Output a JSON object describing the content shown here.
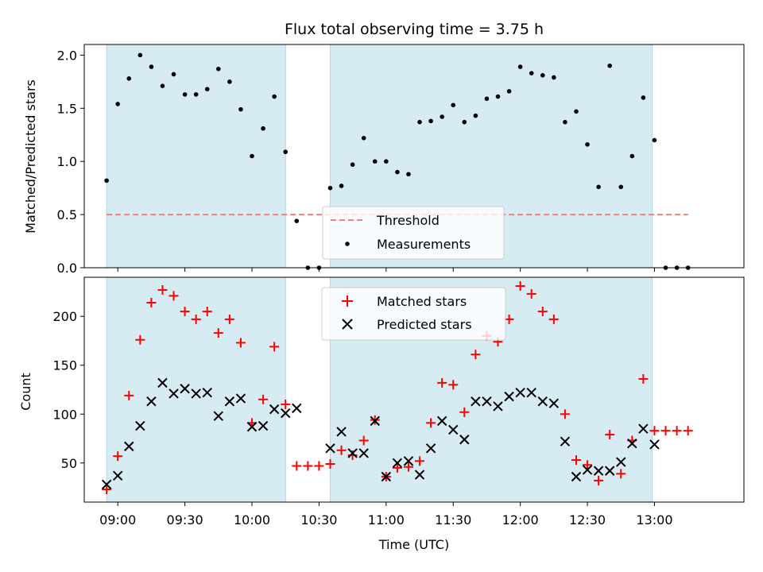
{
  "chart_data": [
    {
      "type": "scatter",
      "title": "Flux total observing time = 3.75 h",
      "xlabel": "",
      "ylabel": "Matched/Predicted stars",
      "ylim": [
        0,
        2.1
      ],
      "xlim": [
        "08:45",
        "13:40"
      ],
      "yticks": [
        "0.0",
        "0.5",
        "1.0",
        "1.5",
        "2.0"
      ],
      "shaded_intervals": [
        [
          "08:55",
          "10:15"
        ],
        [
          "10:35",
          "12:59"
        ]
      ],
      "shade_color": "#add8e6",
      "threshold": {
        "name": "Threshold",
        "value": 0.5,
        "x_range": [
          "08:55",
          "13:15"
        ],
        "color": "#f08080"
      },
      "series": [
        {
          "name": "Measurements",
          "color": "#000000",
          "marker": "dot",
          "points": [
            [
              "08:55",
              0.82
            ],
            [
              "09:00",
              1.54
            ],
            [
              "09:05",
              1.78
            ],
            [
              "09:10",
              2.0
            ],
            [
              "09:15",
              1.89
            ],
            [
              "09:20",
              1.71
            ],
            [
              "09:25",
              1.82
            ],
            [
              "09:30",
              1.63
            ],
            [
              "09:35",
              1.63
            ],
            [
              "09:40",
              1.68
            ],
            [
              "09:45",
              1.87
            ],
            [
              "09:50",
              1.75
            ],
            [
              "09:55",
              1.49
            ],
            [
              "10:00",
              1.05
            ],
            [
              "10:05",
              1.31
            ],
            [
              "10:10",
              1.61
            ],
            [
              "10:15",
              1.09
            ],
            [
              "10:20",
              0.44
            ],
            [
              "10:25",
              0.0
            ],
            [
              "10:30",
              0.0
            ],
            [
              "10:35",
              0.75
            ],
            [
              "10:40",
              0.77
            ],
            [
              "10:45",
              0.97
            ],
            [
              "10:50",
              1.22
            ],
            [
              "10:55",
              1.0
            ],
            [
              "11:00",
              1.0
            ],
            [
              "11:05",
              0.9
            ],
            [
              "11:10",
              0.88
            ],
            [
              "11:15",
              1.37
            ],
            [
              "11:20",
              1.38
            ],
            [
              "11:25",
              1.42
            ],
            [
              "11:30",
              1.53
            ],
            [
              "11:35",
              1.37
            ],
            [
              "11:40",
              1.43
            ],
            [
              "11:45",
              1.59
            ],
            [
              "11:50",
              1.61
            ],
            [
              "11:55",
              1.66
            ],
            [
              "12:00",
              1.89
            ],
            [
              "12:05",
              1.83
            ],
            [
              "12:10",
              1.81
            ],
            [
              "12:15",
              1.79
            ],
            [
              "12:20",
              1.37
            ],
            [
              "12:25",
              1.47
            ],
            [
              "12:30",
              1.16
            ],
            [
              "12:35",
              0.76
            ],
            [
              "12:40",
              1.9
            ],
            [
              "12:45",
              0.76
            ],
            [
              "12:50",
              1.05
            ],
            [
              "12:55",
              1.6
            ],
            [
              "13:00",
              1.2
            ],
            [
              "13:05",
              0.0
            ],
            [
              "13:10",
              0.0
            ],
            [
              "13:15",
              0.0
            ]
          ]
        }
      ],
      "legend": {
        "placement": "lower-center"
      }
    },
    {
      "type": "scatter",
      "title": "",
      "xlabel": "Time (UTC)",
      "ylabel": "Count",
      "ylim": [
        10,
        240
      ],
      "xlim": [
        "08:45",
        "13:40"
      ],
      "xticks": [
        "09:00",
        "09:30",
        "10:00",
        "10:30",
        "11:00",
        "11:30",
        "12:00",
        "12:30",
        "13:00"
      ],
      "yticks": [
        "50",
        "100",
        "150",
        "200"
      ],
      "shaded_intervals": [
        [
          "08:55",
          "10:15"
        ],
        [
          "10:35",
          "12:59"
        ]
      ],
      "shade_color": "#add8e6",
      "series": [
        {
          "name": "Matched stars",
          "color": "#ff0000",
          "marker": "plus",
          "points": [
            [
              "08:55",
              23
            ],
            [
              "09:00",
              57
            ],
            [
              "09:05",
              119
            ],
            [
              "09:10",
              176
            ],
            [
              "09:15",
              214
            ],
            [
              "09:20",
              227
            ],
            [
              "09:25",
              221
            ],
            [
              "09:30",
              205
            ],
            [
              "09:35",
              197
            ],
            [
              "09:40",
              205
            ],
            [
              "09:45",
              183
            ],
            [
              "09:50",
              197
            ],
            [
              "09:55",
              173
            ],
            [
              "10:00",
              91
            ],
            [
              "10:05",
              115
            ],
            [
              "10:10",
              169
            ],
            [
              "10:15",
              110
            ],
            [
              "10:20",
              47
            ],
            [
              "10:25",
              47
            ],
            [
              "10:30",
              47
            ],
            [
              "10:35",
              49
            ],
            [
              "10:40",
              63
            ],
            [
              "10:45",
              58
            ],
            [
              "10:50",
              73
            ],
            [
              "10:55",
              94
            ],
            [
              "11:00",
              36
            ],
            [
              "11:05",
              45
            ],
            [
              "11:10",
              46
            ],
            [
              "11:15",
              52
            ],
            [
              "11:20",
              91
            ],
            [
              "11:25",
              132
            ],
            [
              "11:30",
              130
            ],
            [
              "11:35",
              102
            ],
            [
              "11:40",
              161
            ],
            [
              "11:45",
              180
            ],
            [
              "11:50",
              174
            ],
            [
              "11:55",
              197
            ],
            [
              "12:00",
              231
            ],
            [
              "12:05",
              223
            ],
            [
              "12:10",
              205
            ],
            [
              "12:15",
              197
            ],
            [
              "12:20",
              100
            ],
            [
              "12:25",
              53
            ],
            [
              "12:30",
              48
            ],
            [
              "12:35",
              32
            ],
            [
              "12:40",
              79
            ],
            [
              "12:45",
              39
            ],
            [
              "12:50",
              73
            ],
            [
              "12:55",
              136
            ],
            [
              "13:00",
              83
            ],
            [
              "13:05",
              83
            ],
            [
              "13:10",
              83
            ],
            [
              "13:15",
              83
            ]
          ]
        },
        {
          "name": "Predicted stars",
          "color": "#000000",
          "marker": "x",
          "points": [
            [
              "08:55",
              28
            ],
            [
              "09:00",
              37
            ],
            [
              "09:05",
              67
            ],
            [
              "09:10",
              88
            ],
            [
              "09:15",
              113
            ],
            [
              "09:20",
              132
            ],
            [
              "09:25",
              121
            ],
            [
              "09:30",
              126
            ],
            [
              "09:35",
              121
            ],
            [
              "09:40",
              122
            ],
            [
              "09:45",
              98
            ],
            [
              "09:50",
              113
            ],
            [
              "09:55",
              116
            ],
            [
              "10:00",
              87
            ],
            [
              "10:05",
              88
            ],
            [
              "10:10",
              105
            ],
            [
              "10:15",
              101
            ],
            [
              "10:20",
              106
            ],
            [
              "10:35",
              65
            ],
            [
              "10:40",
              82
            ],
            [
              "10:45",
              60
            ],
            [
              "10:50",
              60
            ],
            [
              "10:55",
              93
            ],
            [
              "11:00",
              36
            ],
            [
              "11:05",
              50
            ],
            [
              "11:10",
              52
            ],
            [
              "11:15",
              38
            ],
            [
              "11:20",
              65
            ],
            [
              "11:25",
              93
            ],
            [
              "11:30",
              84
            ],
            [
              "11:35",
              74
            ],
            [
              "11:40",
              113
            ],
            [
              "11:45",
              113
            ],
            [
              "11:50",
              108
            ],
            [
              "11:55",
              118
            ],
            [
              "12:00",
              122
            ],
            [
              "12:05",
              122
            ],
            [
              "12:10",
              113
            ],
            [
              "12:15",
              111
            ],
            [
              "12:20",
              72
            ],
            [
              "12:25",
              36
            ],
            [
              "12:30",
              43
            ],
            [
              "12:35",
              42
            ],
            [
              "12:40",
              42
            ],
            [
              "12:45",
              51
            ],
            [
              "12:50",
              70
            ],
            [
              "12:55",
              85
            ],
            [
              "13:00",
              69
            ]
          ]
        }
      ],
      "legend": {
        "placement": "upper-center"
      }
    }
  ]
}
